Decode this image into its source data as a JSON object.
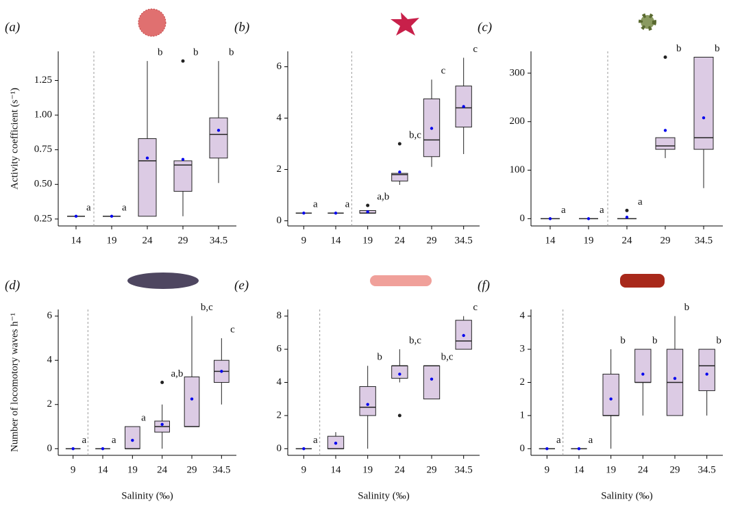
{
  "chart_data": [
    {
      "type": "box",
      "panel_label": "(a)",
      "ylabel": "Activity coefficient (s⁻¹)",
      "categories": [
        "14",
        "19",
        "24",
        "29",
        "34.5"
      ],
      "ylim": [
        0.2,
        1.46
      ],
      "yticks": [
        0.25,
        {
          "value": 0.5,
          "label": "0.50"
        },
        0.75,
        {
          "value": 1.0,
          "label": "1.00"
        },
        1.25
      ],
      "divider_after": 0,
      "box_color": "#dccbe4",
      "mean_color": "#0000ee",
      "boxes": [
        {
          "min": 0.27,
          "q1": 0.27,
          "median": 0.27,
          "q3": 0.27,
          "max": 0.27,
          "mean": 0.27,
          "outliers": [],
          "letter": "a"
        },
        {
          "min": 0.27,
          "q1": 0.27,
          "median": 0.27,
          "q3": 0.27,
          "max": 0.27,
          "mean": 0.27,
          "outliers": [],
          "letter": "a"
        },
        {
          "min": 0.27,
          "q1": 0.27,
          "median": 0.67,
          "q3": 0.83,
          "max": 1.39,
          "mean": 0.69,
          "outliers": [],
          "letter": "b"
        },
        {
          "min": 0.27,
          "q1": 0.45,
          "median": 0.64,
          "q3": 0.67,
          "max": 0.67,
          "mean": 0.68,
          "outliers": [
            1.39
          ],
          "letter": "b"
        },
        {
          "min": 0.51,
          "q1": 0.69,
          "median": 0.86,
          "q3": 0.98,
          "max": 1.39,
          "mean": 0.89,
          "outliers": [],
          "letter": "b"
        }
      ]
    },
    {
      "type": "box",
      "panel_label": "(b)",
      "categories": [
        "9",
        "14",
        "19",
        "24",
        "29",
        "34.5"
      ],
      "ylim": [
        -0.2,
        6.6
      ],
      "yticks": [
        0,
        2,
        4,
        6
      ],
      "divider_after": 1,
      "box_color": "#dccbe4",
      "mean_color": "#0000ee",
      "boxes": [
        {
          "min": 0.3,
          "q1": 0.3,
          "median": 0.3,
          "q3": 0.3,
          "max": 0.3,
          "mean": 0.3,
          "outliers": [],
          "letter": "a"
        },
        {
          "min": 0.3,
          "q1": 0.3,
          "median": 0.3,
          "q3": 0.3,
          "max": 0.3,
          "mean": 0.3,
          "outliers": [],
          "letter": "a"
        },
        {
          "min": 0.3,
          "q1": 0.3,
          "median": 0.3,
          "q3": 0.4,
          "max": 0.4,
          "mean": 0.35,
          "outliers": [
            0.6
          ],
          "letter": "a,b"
        },
        {
          "min": 1.4,
          "q1": 1.55,
          "median": 1.8,
          "q3": 1.85,
          "max": 1.85,
          "mean": 1.9,
          "outliers": [
            3.0
          ],
          "letter": "b,c"
        },
        {
          "min": 2.1,
          "q1": 2.5,
          "median": 3.15,
          "q3": 4.75,
          "max": 5.5,
          "mean": 3.6,
          "outliers": [],
          "letter": "c"
        },
        {
          "min": 2.6,
          "q1": 3.65,
          "median": 4.4,
          "q3": 5.25,
          "max": 6.35,
          "mean": 4.45,
          "outliers": [],
          "letter": "c"
        }
      ]
    },
    {
      "type": "box",
      "panel_label": "(c)",
      "categories": [
        "14",
        "19",
        "24",
        "29",
        "34.5"
      ],
      "ylim": [
        -15,
        345
      ],
      "yticks": [
        0,
        100,
        200,
        300
      ],
      "divider_after": 1,
      "box_color": "#dccbe4",
      "mean_color": "#0000ee",
      "boxes": [
        {
          "min": 0,
          "q1": 0,
          "median": 0,
          "q3": 0,
          "max": 0,
          "mean": 0,
          "outliers": [],
          "letter": "a"
        },
        {
          "min": 0,
          "q1": 0,
          "median": 0,
          "q3": 0,
          "max": 0,
          "mean": 0,
          "outliers": [],
          "letter": "a"
        },
        {
          "min": 0,
          "q1": 0,
          "median": 0,
          "q3": 0,
          "max": 0,
          "mean": 3,
          "outliers": [
            17
          ],
          "letter": "a"
        },
        {
          "min": 125,
          "q1": 143,
          "median": 150,
          "q3": 167,
          "max": 167,
          "mean": 182,
          "outliers": [
            333
          ],
          "letter": "b"
        },
        {
          "min": 63,
          "q1": 143,
          "median": 167,
          "q3": 333,
          "max": 333,
          "mean": 208,
          "outliers": [],
          "letter": "b"
        }
      ]
    },
    {
      "type": "box",
      "panel_label": "(d)",
      "ylabel": "Number of locomotory waves h⁻¹",
      "xlabel": "Salinity (‰)",
      "categories": [
        "9",
        "14",
        "19",
        "24",
        "29",
        "34.5"
      ],
      "ylim": [
        -0.3,
        6.3
      ],
      "yticks": [
        0,
        2,
        4,
        6
      ],
      "divider_after": 0,
      "box_color": "#dccbe4",
      "mean_color": "#0000ee",
      "boxes": [
        {
          "min": 0,
          "q1": 0,
          "median": 0,
          "q3": 0,
          "max": 0,
          "mean": 0,
          "outliers": [],
          "letter": "a"
        },
        {
          "min": 0,
          "q1": 0,
          "median": 0,
          "q3": 0,
          "max": 0,
          "mean": 0,
          "outliers": [],
          "letter": "a"
        },
        {
          "min": 0,
          "q1": 0,
          "median": 0,
          "q3": 1,
          "max": 1,
          "mean": 0.38,
          "outliers": [],
          "letter": "a"
        },
        {
          "min": 0,
          "q1": 0.75,
          "median": 1,
          "q3": 1.25,
          "max": 2,
          "mean": 1.1,
          "outliers": [
            3
          ],
          "letter": "a,b"
        },
        {
          "min": 1,
          "q1": 1,
          "median": 1,
          "q3": 3.25,
          "max": 6,
          "mean": 2.25,
          "outliers": [],
          "letter": "b,c"
        },
        {
          "min": 2,
          "q1": 3,
          "median": 3.5,
          "q3": 4,
          "max": 5,
          "mean": 3.5,
          "outliers": [],
          "letter": "c"
        }
      ]
    },
    {
      "type": "box",
      "panel_label": "(e)",
      "xlabel": "Salinity (‰)",
      "categories": [
        "9",
        "14",
        "19",
        "24",
        "29",
        "34.5"
      ],
      "ylim": [
        -0.4,
        8.4
      ],
      "yticks": [
        0,
        2,
        4,
        6,
        8
      ],
      "divider_after": 0,
      "box_color": "#dccbe4",
      "mean_color": "#0000ee",
      "boxes": [
        {
          "min": 0,
          "q1": 0,
          "median": 0,
          "q3": 0,
          "max": 0,
          "mean": 0,
          "outliers": [],
          "letter": "a"
        },
        {
          "min": 0,
          "q1": 0,
          "median": 0,
          "q3": 0.75,
          "max": 1,
          "mean": 0.33,
          "outliers": [],
          "letter": null
        },
        {
          "min": 0,
          "q1": 2,
          "median": 2.5,
          "q3": 3.75,
          "max": 5,
          "mean": 2.67,
          "outliers": [],
          "letter": "b"
        },
        {
          "min": 4,
          "q1": 4.25,
          "median": 5,
          "q3": 5,
          "max": 6,
          "mean": 4.5,
          "outliers": [
            2
          ],
          "letter": "b,c"
        },
        {
          "min": 3,
          "q1": 3,
          "median": 5,
          "q3": 5,
          "max": 5,
          "mean": 4.2,
          "outliers": [],
          "letter": "b,c"
        },
        {
          "min": 6,
          "q1": 6,
          "median": 6.5,
          "q3": 7.75,
          "max": 8,
          "mean": 6.83,
          "outliers": [],
          "letter": "c"
        }
      ]
    },
    {
      "type": "box",
      "panel_label": "(f)",
      "xlabel": "Salinity (‰)",
      "categories": [
        "9",
        "14",
        "19",
        "24",
        "29",
        "34.5"
      ],
      "ylim": [
        -0.2,
        4.2
      ],
      "yticks": [
        0,
        1,
        2,
        3,
        4
      ],
      "divider_after": 0,
      "box_color": "#dccbe4",
      "mean_color": "#0000ee",
      "boxes": [
        {
          "min": 0,
          "q1": 0,
          "median": 0,
          "q3": 0,
          "max": 0,
          "mean": 0,
          "outliers": [],
          "letter": "a"
        },
        {
          "min": 0,
          "q1": 0,
          "median": 0,
          "q3": 0,
          "max": 0,
          "mean": 0,
          "outliers": [],
          "letter": "a"
        },
        {
          "min": 0,
          "q1": 1,
          "median": 1,
          "q3": 2.25,
          "max": 3,
          "mean": 1.5,
          "outliers": [],
          "letter": "b"
        },
        {
          "min": 1,
          "q1": 2,
          "median": 2,
          "q3": 3,
          "max": 3,
          "mean": 2.25,
          "outliers": [],
          "letter": "b"
        },
        {
          "min": 1,
          "q1": 1,
          "median": 2,
          "q3": 3,
          "max": 4,
          "mean": 2.12,
          "outliers": [],
          "letter": "b"
        },
        {
          "min": 1,
          "q1": 1.75,
          "median": 2.5,
          "q3": 3,
          "max": 3,
          "mean": 2.25,
          "outliers": [],
          "letter": "b"
        }
      ]
    }
  ]
}
